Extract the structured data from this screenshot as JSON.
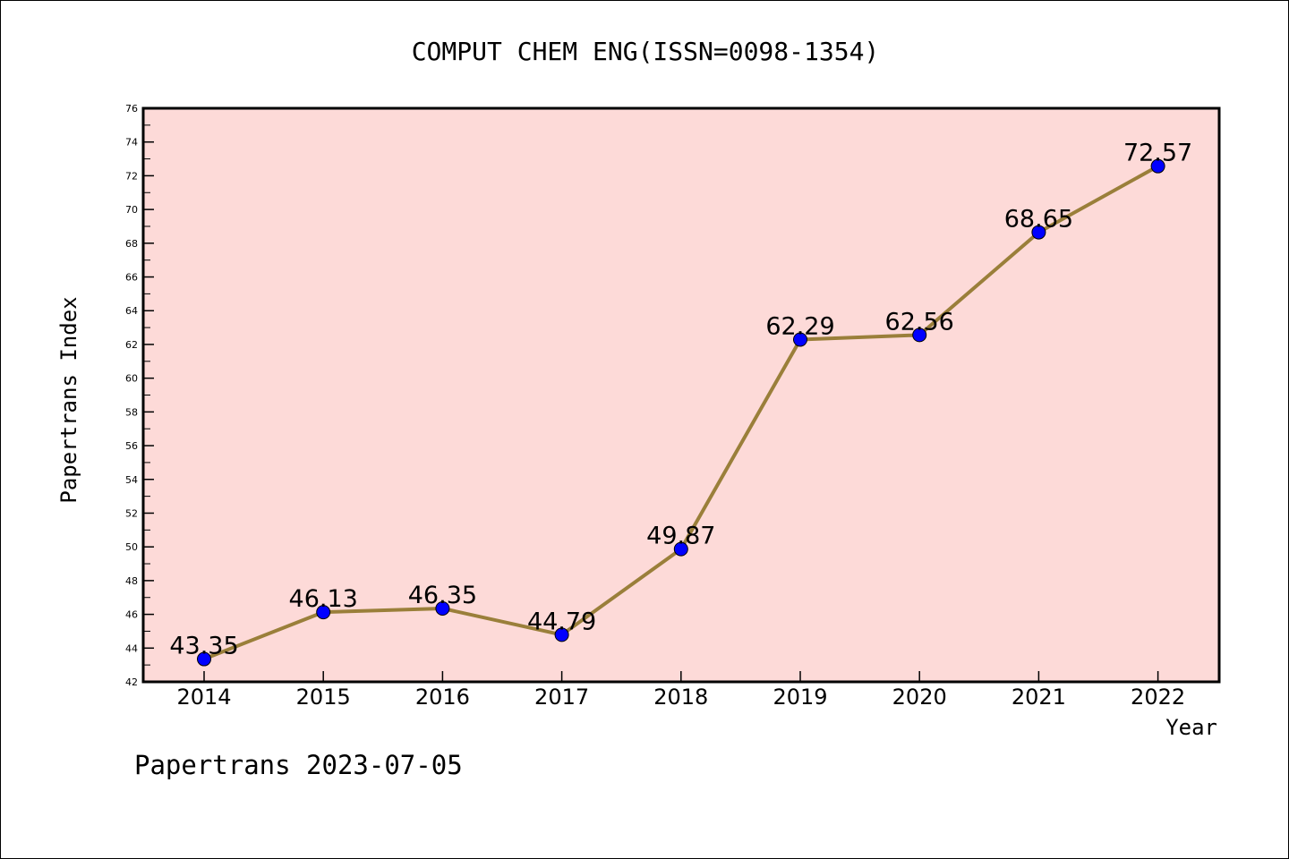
{
  "chart_data": {
    "type": "line",
    "title": "COMPUT CHEM ENG(ISSN=0098-1354)",
    "xlabel": "Year",
    "ylabel": "Papertrans Index",
    "categories": [
      "2014",
      "2015",
      "2016",
      "2017",
      "2018",
      "2019",
      "2020",
      "2021",
      "2022"
    ],
    "series": [
      {
        "values": [
          43.35,
          46.13,
          46.35,
          44.79,
          49.87,
          62.29,
          62.56,
          68.65,
          72.57
        ],
        "line_color": "#9a7f3a",
        "marker_color": "#0000ff"
      }
    ],
    "data_labels": [
      "43.35",
      "46.13",
      "46.35",
      "44.79",
      "49.87",
      "62.29",
      "62.56",
      "68.65",
      "72.57"
    ],
    "ylim": [
      42,
      76
    ],
    "yticks": [
      "42",
      "44",
      "46",
      "48",
      "50",
      "52",
      "54",
      "56",
      "58",
      "60",
      "62",
      "64",
      "66",
      "68",
      "70",
      "72",
      "74",
      "76"
    ],
    "plot_background": "#fddad8",
    "grid": false,
    "legend": "none"
  },
  "footer": "Papertrans 2023-07-05"
}
